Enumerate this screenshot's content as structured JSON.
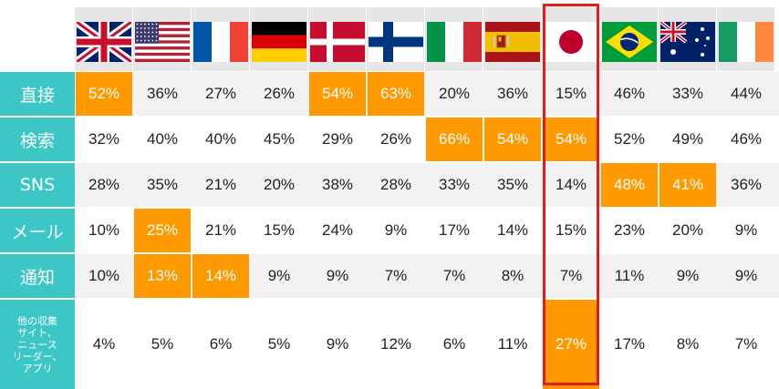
{
  "chart_data": {
    "type": "table",
    "columns": [
      {
        "flag": "united-kingdom-flag"
      },
      {
        "flag": "united-states-flag"
      },
      {
        "flag": "france-flag"
      },
      {
        "flag": "germany-flag"
      },
      {
        "flag": "denmark-flag"
      },
      {
        "flag": "finland-flag"
      },
      {
        "flag": "italy-flag"
      },
      {
        "flag": "spain-flag"
      },
      {
        "flag": "japan-flag",
        "highlighted": true
      },
      {
        "flag": "brazil-flag"
      },
      {
        "flag": "australia-flag"
      },
      {
        "flag": "ireland-flag"
      }
    ],
    "rows": [
      {
        "label": "直接",
        "values": [
          "52%",
          "36%",
          "27%",
          "26%",
          "54%",
          "63%",
          "20%",
          "36%",
          "15%",
          "46%",
          "33%",
          "44%"
        ],
        "highlight": [
          0,
          4,
          5
        ]
      },
      {
        "label": "検索",
        "values": [
          "32%",
          "40%",
          "40%",
          "45%",
          "29%",
          "26%",
          "66%",
          "54%",
          "54%",
          "52%",
          "49%",
          "46%"
        ],
        "highlight": [
          6,
          7,
          8
        ]
      },
      {
        "label": "SNS",
        "values": [
          "28%",
          "35%",
          "21%",
          "20%",
          "38%",
          "28%",
          "33%",
          "35%",
          "14%",
          "48%",
          "41%",
          "36%"
        ],
        "highlight": [
          9,
          10
        ]
      },
      {
        "label": "メール",
        "values": [
          "10%",
          "25%",
          "21%",
          "15%",
          "24%",
          "9%",
          "17%",
          "14%",
          "15%",
          "23%",
          "20%",
          "9%"
        ],
        "highlight": [
          1
        ]
      },
      {
        "label": "通知",
        "values": [
          "10%",
          "13%",
          "14%",
          "9%",
          "9%",
          "7%",
          "7%",
          "8%",
          "7%",
          "11%",
          "9%",
          "9%"
        ],
        "highlight": [
          1,
          2
        ]
      },
      {
        "label": "他の収集\nサイト、\nニュース\nリーダー、\nアプリ",
        "values": [
          "4%",
          "5%",
          "6%",
          "5%",
          "9%",
          "12%",
          "6%",
          "11%",
          "27%",
          "17%",
          "8%",
          "7%"
        ],
        "highlight": [
          8
        ]
      }
    ],
    "colors": {
      "label_bg": "#3cc6c6",
      "highlight": "#ff9900",
      "stripe": "#f2f2f2",
      "frame": "#e41b1b",
      "header_bg": "#e6e6e6"
    }
  }
}
